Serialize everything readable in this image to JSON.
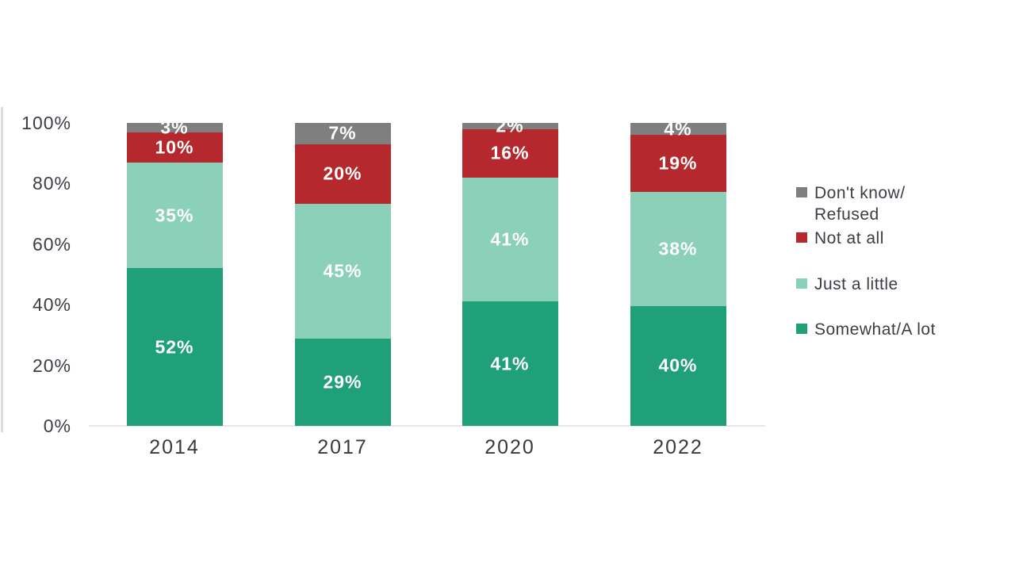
{
  "chart_data": {
    "type": "bar",
    "stacked": true,
    "percent_stacked": true,
    "title": "",
    "xlabel": "",
    "ylabel": "",
    "categories": [
      "2014",
      "2017",
      "2020",
      "2022"
    ],
    "series": [
      {
        "name": "Somewhat/A lot",
        "color": "#1fa078",
        "values": [
          52,
          29,
          41,
          40
        ]
      },
      {
        "name": "Just a little",
        "color": "#8bd0b8",
        "values": [
          35,
          45,
          41,
          38
        ]
      },
      {
        "name": "Not at all",
        "color": "#b5282e",
        "values": [
          10,
          20,
          16,
          19
        ]
      },
      {
        "name": "Don't know/Refused",
        "color": "#7f7f7f",
        "values": [
          3,
          7,
          2,
          4
        ]
      }
    ],
    "data_label_suffix": "%",
    "y_axis": {
      "ticks": [
        "0%",
        "20%",
        "40%",
        "60%",
        "80%",
        "100%"
      ],
      "range": [
        0,
        100
      ],
      "grid": false
    },
    "legend": {
      "position": "right",
      "entries": [
        {
          "label": "Don't know/\nRefused",
          "color": "#7f7f7f"
        },
        {
          "label": "Not at all",
          "color": "#b5282e"
        },
        {
          "label": "Just a little",
          "color": "#8bd0b8"
        },
        {
          "label": "Somewhat/A lot",
          "color": "#1fa078"
        }
      ]
    },
    "colors": {
      "axis_text": "#3d3d46",
      "data_label_text": "#ffffff",
      "baseline": "#e7e7e7",
      "axis_line": "#dcdcdc",
      "background": "#ffffff"
    }
  }
}
